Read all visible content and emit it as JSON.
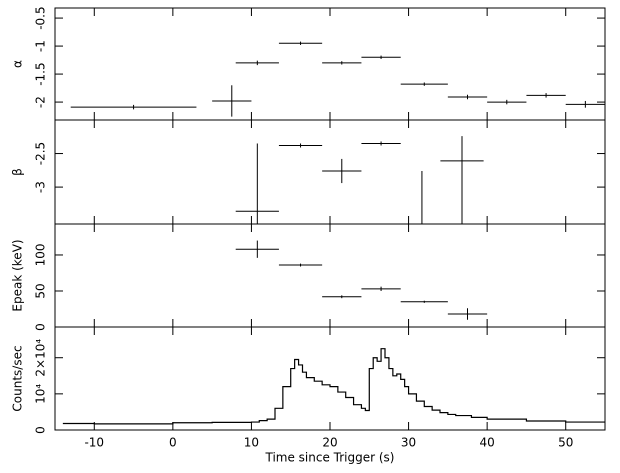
{
  "chart_data": [
    {
      "type": "errorbar",
      "ylabel": "α",
      "xlim": [
        -15,
        55
      ],
      "ylim": [
        -2.32,
        -0.32
      ],
      "yticks": [
        -2,
        -1.5,
        -1,
        -0.5
      ],
      "x": [
        -5,
        7.5,
        10.75,
        16.25,
        21.5,
        26.5,
        32,
        37.5,
        42.5,
        47.5,
        52.5
      ],
      "xerr": [
        8,
        2.5,
        2.75,
        2.75,
        2.5,
        2.5,
        3,
        2.5,
        2.5,
        2.5,
        2.5
      ],
      "values": [
        -2.09,
        -1.98,
        -1.3,
        -0.95,
        -1.3,
        -1.2,
        -1.68,
        -1.91,
        -2.0,
        -1.88,
        -2.04
      ],
      "yerr_low": [
        0.04,
        0.28,
        0.04,
        0.03,
        0.03,
        0.03,
        0.03,
        0.04,
        0.04,
        0.04,
        0.06
      ],
      "yerr_high": [
        0.04,
        0.28,
        0.04,
        0.03,
        0.03,
        0.03,
        0.03,
        0.04,
        0.04,
        0.04,
        0.06
      ]
    },
    {
      "type": "errorbar",
      "ylabel": "β",
      "xlim": [
        -15,
        55
      ],
      "ylim": [
        -3.55,
        -2.0
      ],
      "yticks": [
        -3,
        -2.5
      ],
      "x": [
        10.75,
        16.25,
        21.5,
        26.5,
        31.7,
        36.8
      ],
      "xerr": [
        2.75,
        2.75,
        2.5,
        2.5,
        0,
        2.75
      ],
      "values": [
        -3.36,
        -2.38,
        -2.76,
        -2.35,
        -3.3,
        -2.61
      ],
      "yerr_low": [
        0.2,
        0.03,
        0.18,
        0.03,
        0.25,
        0.94
      ],
      "yerr_high": [
        1.01,
        0.03,
        0.18,
        0.03,
        0.54,
        0.37
      ]
    },
    {
      "type": "errorbar",
      "ylabel": "Epeak (keV)",
      "xlim": [
        -15,
        55
      ],
      "ylim": [
        0,
        143
      ],
      "yticks": [
        0,
        50,
        100
      ],
      "x": [
        10.75,
        16.25,
        21.5,
        26.5,
        32,
        37.5
      ],
      "xerr": [
        2.75,
        2.75,
        2.5,
        2.5,
        3,
        2.5
      ],
      "values": [
        108,
        86,
        42,
        53,
        35,
        18
      ],
      "yerr_low": [
        12,
        2,
        2,
        3,
        1.5,
        8
      ],
      "yerr_high": [
        12,
        2,
        2,
        3,
        1.5,
        8
      ]
    },
    {
      "type": "line",
      "ylabel": "Counts/sec",
      "xlabel": "Time since Trigger (s)",
      "xlim": [
        -15,
        55
      ],
      "ylim": [
        0,
        28500
      ],
      "yticks": [
        0,
        {
          "value": 10000,
          "label": "10⁴"
        },
        {
          "value": 20000,
          "label": "2×10⁴"
        }
      ],
      "xticks": [
        -10,
        0,
        10,
        20,
        30,
        40,
        50
      ],
      "x": [
        -14,
        -10,
        -5,
        0,
        5,
        10,
        11,
        12,
        13,
        14,
        15,
        15.5,
        16,
        16.5,
        17,
        18,
        19,
        20,
        21,
        22,
        23,
        24,
        24.5,
        25,
        25.5,
        26,
        26.5,
        27,
        27.5,
        28,
        28.5,
        29,
        29.5,
        30,
        31,
        32,
        33,
        34,
        35,
        36,
        38,
        40,
        45,
        50
      ],
      "values": [
        1800,
        1700,
        1700,
        2000,
        2100,
        2200,
        2600,
        3000,
        6000,
        12000,
        17000,
        19500,
        18000,
        16000,
        14500,
        13500,
        12500,
        12000,
        10500,
        9000,
        7000,
        6000,
        5400,
        17000,
        20000,
        19000,
        22500,
        20000,
        17000,
        15000,
        15500,
        14000,
        12000,
        10000,
        8000,
        6500,
        5500,
        4800,
        4300,
        4000,
        3500,
        3000,
        2500,
        2200
      ],
      "color": "#000000"
    }
  ]
}
